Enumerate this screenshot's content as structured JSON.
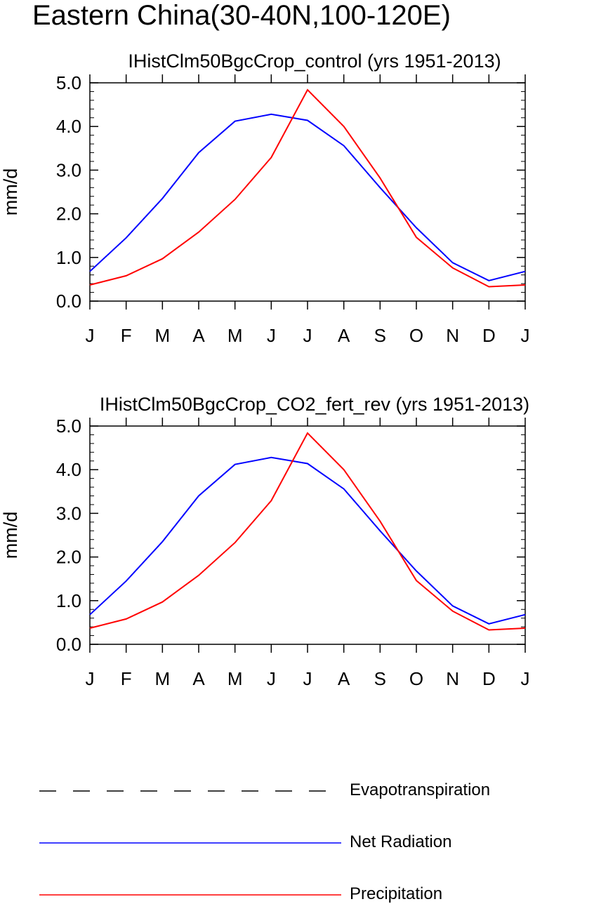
{
  "figure_title": "Eastern China(30-40N,100-120E)",
  "legend": [
    {
      "label": "Evapotranspiration",
      "color": "#000000",
      "style": "dashed"
    },
    {
      "label": "Net Radiation",
      "color": "#0000ff",
      "style": "solid"
    },
    {
      "label": "Precipitation",
      "color": "#ff0000",
      "style": "solid"
    }
  ],
  "chart_data": [
    {
      "type": "line",
      "title": "IHistClm50BgcCrop_control (yrs 1951-2013)",
      "ylabel": "mm/d",
      "ylim": [
        0,
        5
      ],
      "yticks": [
        "0.0",
        "1.0",
        "2.0",
        "3.0",
        "4.0",
        "5.0"
      ],
      "categories": [
        "J",
        "F",
        "M",
        "A",
        "M",
        "J",
        "J",
        "A",
        "S",
        "O",
        "N",
        "D",
        "J"
      ],
      "series": [
        {
          "name": "Net Radiation",
          "color": "#0000ff",
          "values": [
            0.68,
            1.45,
            2.35,
            3.4,
            4.12,
            4.28,
            4.14,
            3.56,
            2.6,
            1.68,
            0.88,
            0.47,
            0.68
          ]
        },
        {
          "name": "Precipitation",
          "color": "#ff0000",
          "values": [
            0.37,
            0.58,
            0.97,
            1.58,
            2.33,
            3.29,
            4.84,
            4.0,
            2.82,
            1.46,
            0.76,
            0.33,
            0.37
          ]
        }
      ]
    },
    {
      "type": "line",
      "title": "IHistClm50BgcCrop_CO2_fert_rev (yrs 1951-2013)",
      "ylabel": "mm/d",
      "ylim": [
        0,
        5
      ],
      "yticks": [
        "0.0",
        "1.0",
        "2.0",
        "3.0",
        "4.0",
        "5.0"
      ],
      "categories": [
        "J",
        "F",
        "M",
        "A",
        "M",
        "J",
        "J",
        "A",
        "S",
        "O",
        "N",
        "D",
        "J"
      ],
      "series": [
        {
          "name": "Net Radiation",
          "color": "#0000ff",
          "values": [
            0.68,
            1.45,
            2.35,
            3.4,
            4.12,
            4.28,
            4.14,
            3.56,
            2.6,
            1.68,
            0.88,
            0.47,
            0.68
          ]
        },
        {
          "name": "Precipitation",
          "color": "#ff0000",
          "values": [
            0.37,
            0.58,
            0.97,
            1.58,
            2.33,
            3.29,
            4.84,
            4.0,
            2.82,
            1.46,
            0.76,
            0.33,
            0.37
          ]
        }
      ]
    }
  ]
}
